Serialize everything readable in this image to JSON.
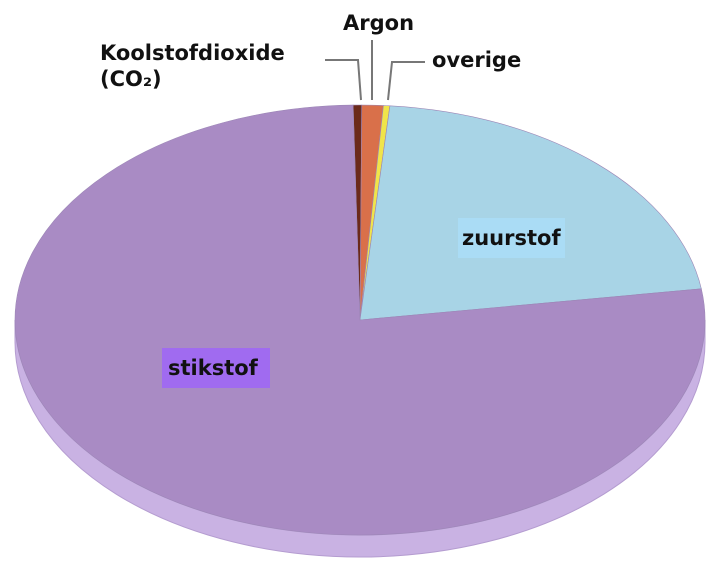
{
  "chart_data": {
    "type": "pie",
    "categories": [
      "Koolstofdioxide (CO₂)",
      "Argon",
      "overige",
      "zuurstof",
      "stikstof"
    ],
    "values": [
      0.4,
      1,
      0.3,
      21.3,
      77
    ],
    "colors": [
      "#6b2a1a",
      "#d9704a",
      "#f0e44a",
      "#a8d4e6",
      "#a98bc4"
    ]
  }
}
